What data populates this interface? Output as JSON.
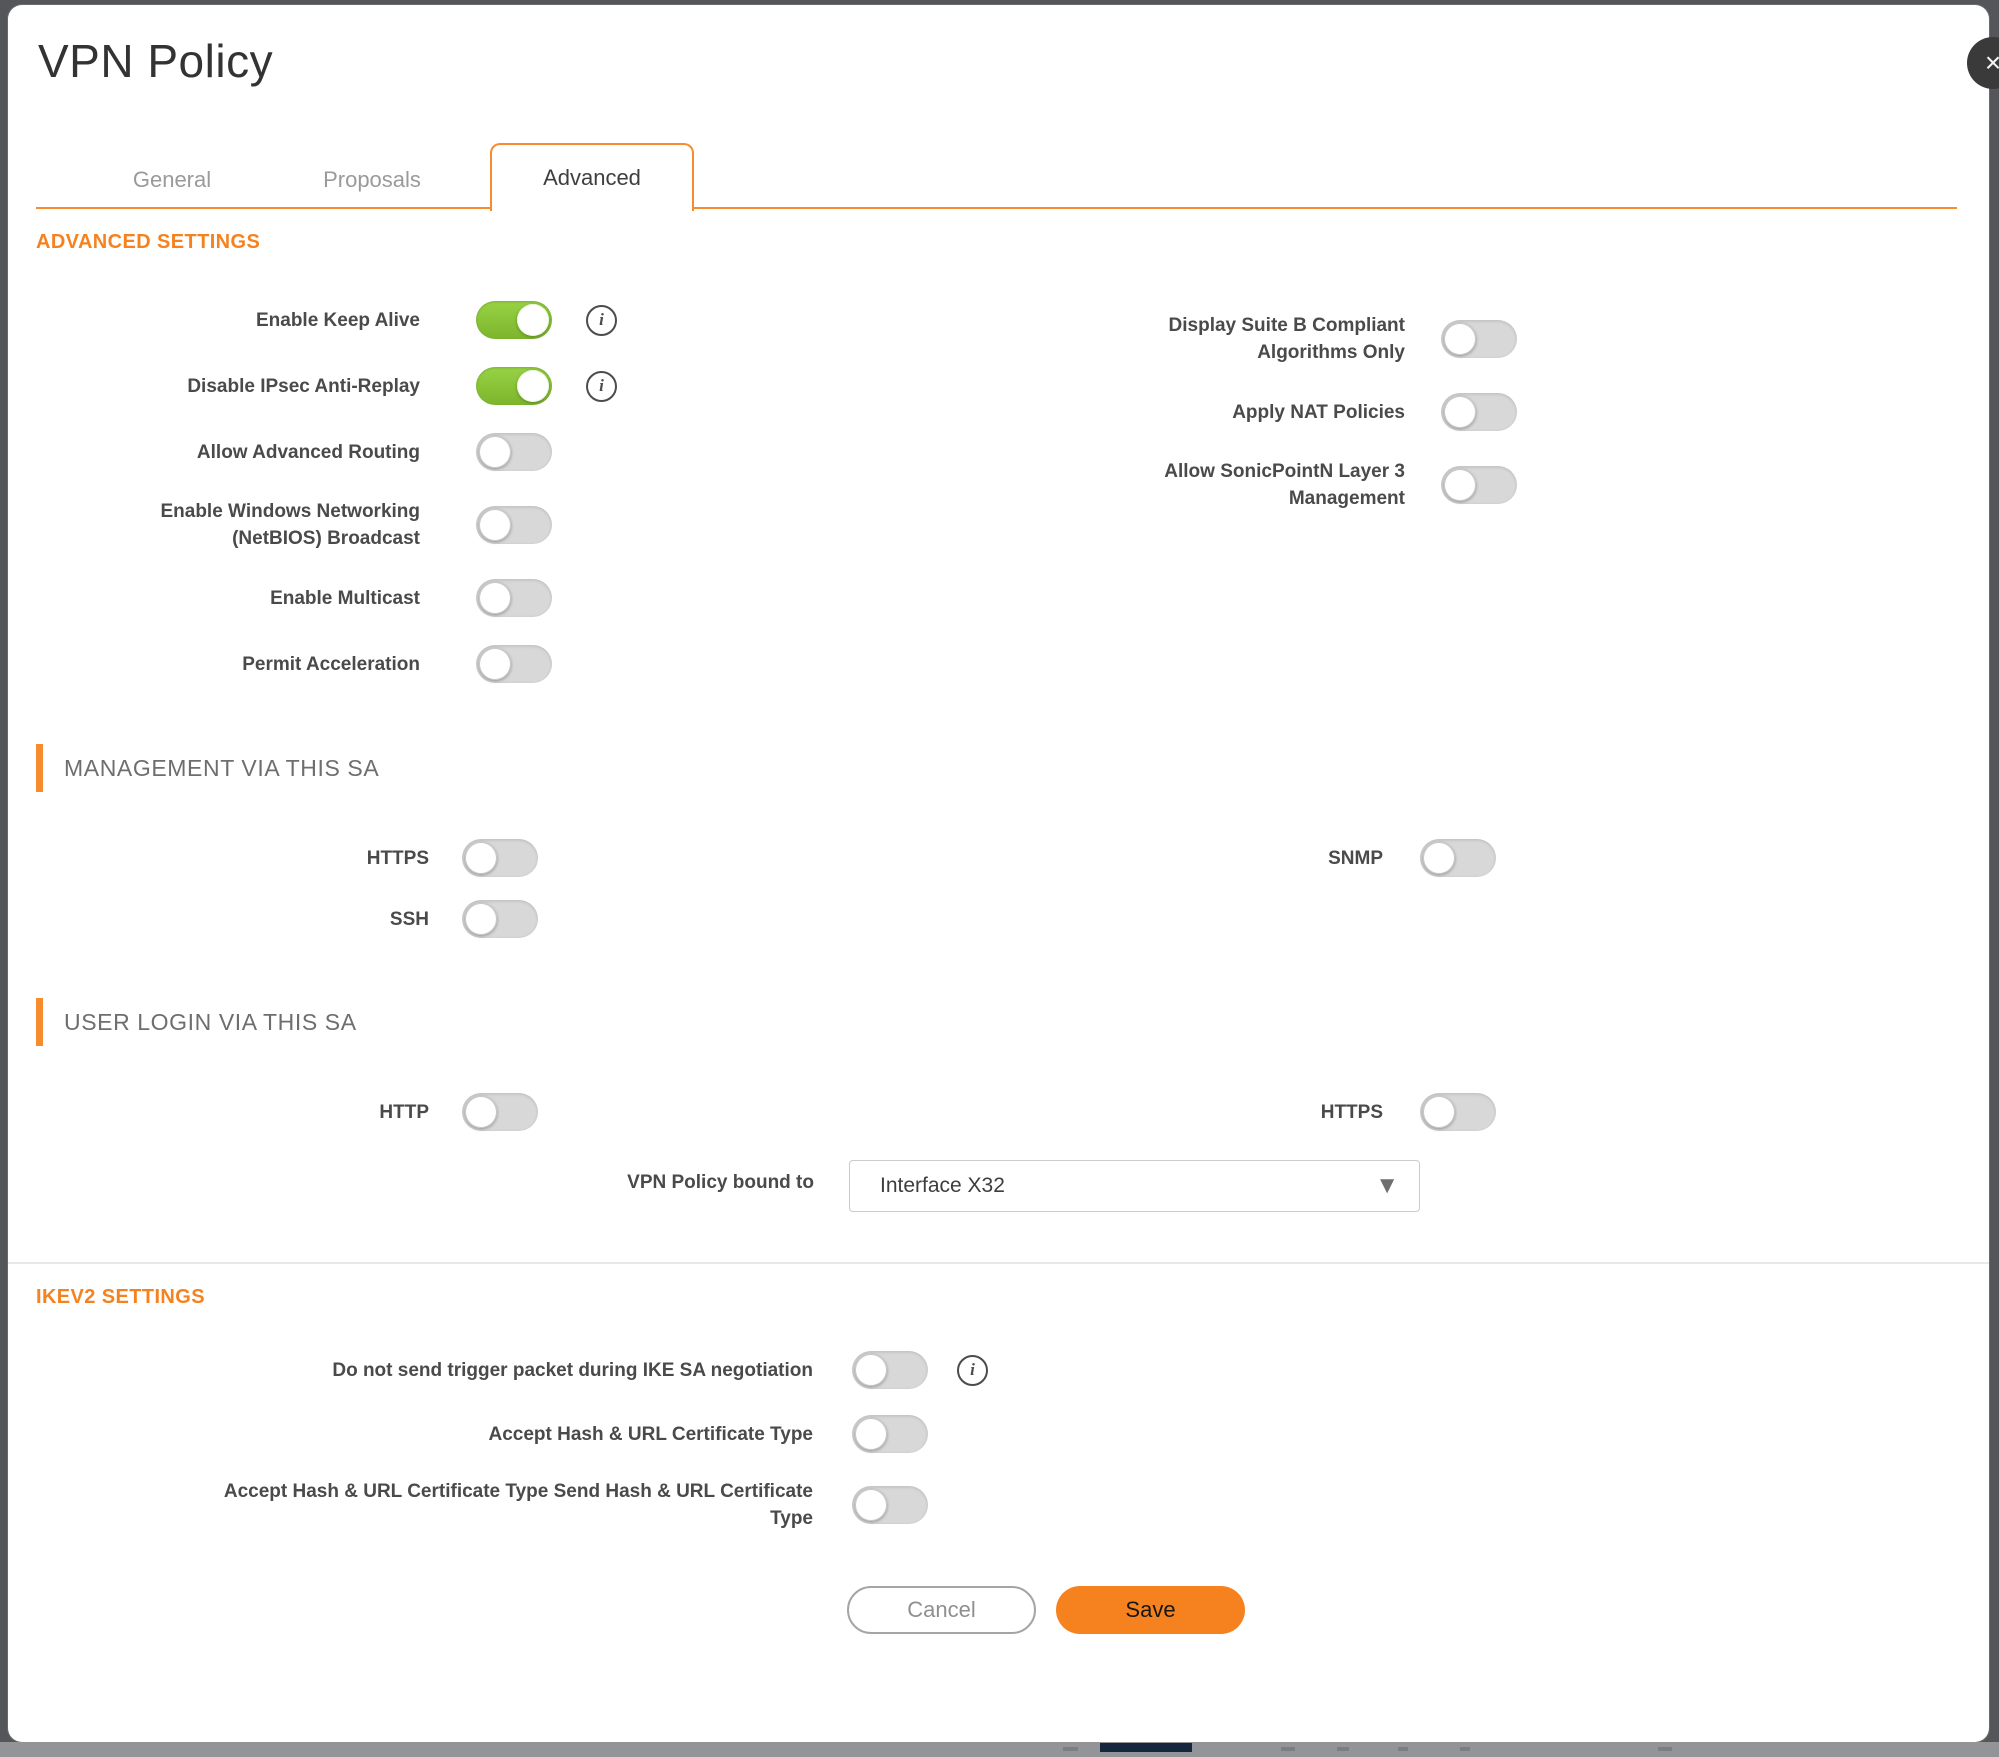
{
  "dialog": {
    "title": "VPN Policy"
  },
  "icons": {
    "close": "×",
    "info": "i",
    "caret": "▼"
  },
  "tabs": [
    {
      "label": "General",
      "active": false
    },
    {
      "label": "Proposals",
      "active": false
    },
    {
      "label": "Advanced",
      "active": true
    }
  ],
  "sections": {
    "advanced": {
      "title": "ADVANCED SETTINGS",
      "left_rows": [
        {
          "label": "Enable Keep Alive",
          "on": true,
          "info": true
        },
        {
          "label": "Disable IPsec Anti-Replay",
          "on": true,
          "info": true
        },
        {
          "label": "Allow Advanced Routing",
          "on": false,
          "info": false
        },
        {
          "label": "Enable Windows Networking (NetBIOS) Broadcast",
          "on": false,
          "info": false
        },
        {
          "label": "Enable Multicast",
          "on": false,
          "info": false
        },
        {
          "label": "Permit Acceleration",
          "on": false,
          "info": false
        }
      ],
      "right_rows": [
        {
          "label": "Display Suite B Compliant Algorithms Only",
          "on": false,
          "info": false
        },
        {
          "label": "Apply NAT Policies",
          "on": false,
          "info": false
        },
        {
          "label": "Allow SonicPointN Layer 3 Management",
          "on": false,
          "info": false
        }
      ]
    },
    "management": {
      "title": "MANAGEMENT VIA THIS SA",
      "left_rows": [
        {
          "label": "HTTPS",
          "on": false,
          "info": false
        },
        {
          "label": "SSH",
          "on": false,
          "info": false
        }
      ],
      "right_rows": [
        {
          "label": "SNMP",
          "on": false,
          "info": false
        }
      ]
    },
    "user_login": {
      "title": "USER LOGIN VIA THIS SA",
      "left_rows": [
        {
          "label": "HTTP",
          "on": false,
          "info": false
        }
      ],
      "right_rows": [
        {
          "label": "HTTPS",
          "on": false,
          "info": false
        }
      ],
      "bound": {
        "label": "VPN Policy bound to",
        "value": "Interface X32"
      }
    },
    "ikev2": {
      "title": "IKEV2 SETTINGS",
      "rows": [
        {
          "label": "Do not send trigger packet during IKE SA negotiation",
          "on": false,
          "info": true
        },
        {
          "label": "Accept Hash & URL Certificate Type",
          "on": false,
          "info": false
        },
        {
          "label": "Accept Hash & URL Certificate Type Send Hash & URL Certificate Type",
          "on": false,
          "info": false
        }
      ]
    }
  },
  "footer": {
    "cancel_label": "Cancel",
    "save_label": "Save"
  },
  "colors": {
    "accent_orange": "#F6821F",
    "tab_border_orange": "#F68C2E",
    "toggle_on_green": "#8CC63F"
  }
}
